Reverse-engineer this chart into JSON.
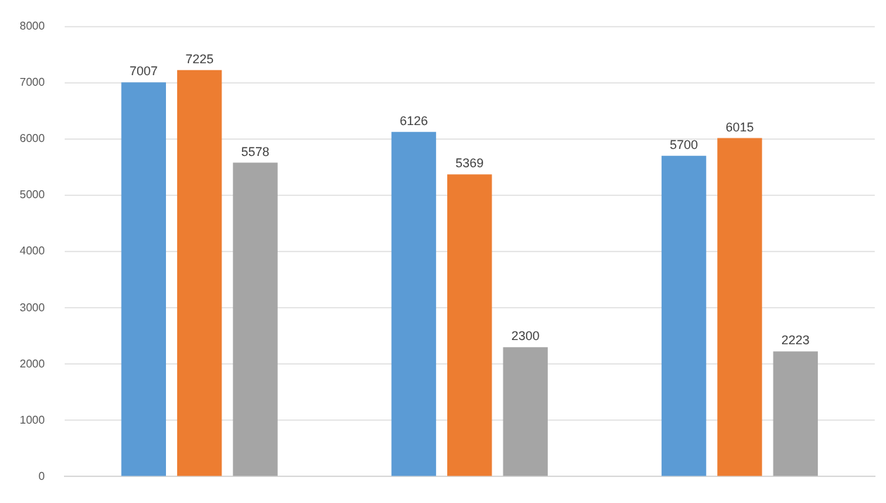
{
  "chart_data": {
    "type": "bar",
    "categories": [
      null,
      null,
      null
    ],
    "series": [
      {
        "color": "#5b9bd5",
        "values": [
          7007,
          6126,
          5700
        ]
      },
      {
        "color": "#ed7d31",
        "values": [
          7225,
          5369,
          6015
        ]
      },
      {
        "color": "#a5a5a5",
        "values": [
          5578,
          2300,
          2223
        ]
      }
    ],
    "ylim": [
      0,
      8000
    ],
    "yticks": [
      0,
      1000,
      2000,
      3000,
      4000,
      5000,
      6000,
      7000,
      8000
    ],
    "grid": "y",
    "data_labels": true,
    "tick_labels": "y"
  }
}
